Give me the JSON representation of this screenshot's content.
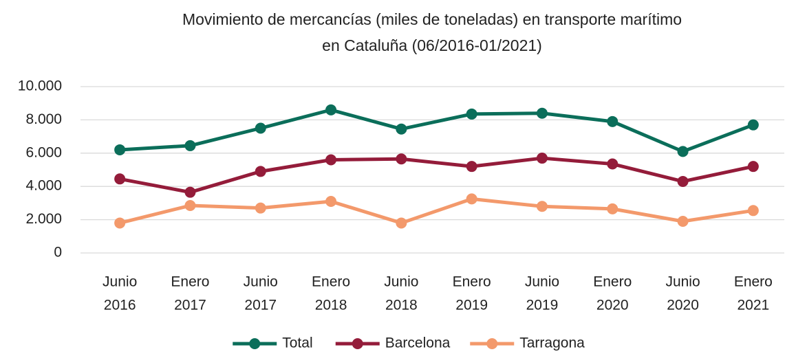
{
  "chart_data": {
    "type": "line",
    "title": [
      "Movimiento de mercancías (miles de toneladas) en transporte marítimo",
      "en Cataluña (06/2016-01/2021)"
    ],
    "categories": [
      [
        "Junio",
        "2016"
      ],
      [
        "Enero",
        "2017"
      ],
      [
        "Junio",
        "2017"
      ],
      [
        "Enero",
        "2018"
      ],
      [
        "Junio",
        "2018"
      ],
      [
        "Enero",
        "2019"
      ],
      [
        "Junio",
        "2019"
      ],
      [
        "Enero",
        "2020"
      ],
      [
        "Junio",
        "2020"
      ],
      [
        "Enero",
        "2021"
      ]
    ],
    "series": [
      {
        "name": "Total",
        "color": "#0b6e5a",
        "values": [
          6200,
          6450,
          7500,
          8600,
          7450,
          8350,
          8400,
          7900,
          6100,
          7700
        ]
      },
      {
        "name": "Barcelona",
        "color": "#941c3a",
        "values": [
          4450,
          3650,
          4900,
          5600,
          5650,
          5200,
          5700,
          5350,
          4300,
          5200
        ]
      },
      {
        "name": "Tarragona",
        "color": "#f3996b",
        "values": [
          1800,
          2850,
          2700,
          3100,
          1800,
          3250,
          2800,
          2650,
          1900,
          2550
        ]
      }
    ],
    "ylim": [
      0,
      10000
    ],
    "yticks": [
      0,
      {
        "value": 2000,
        "label": "2.000"
      },
      {
        "value": 4000,
        "label": "4.000"
      },
      {
        "value": 6000,
        "label": "6.000"
      },
      {
        "value": 8000,
        "label": "8.000"
      },
      {
        "value": 10000,
        "label": "10.000"
      }
    ],
    "grid": true,
    "legend": "bottom"
  }
}
